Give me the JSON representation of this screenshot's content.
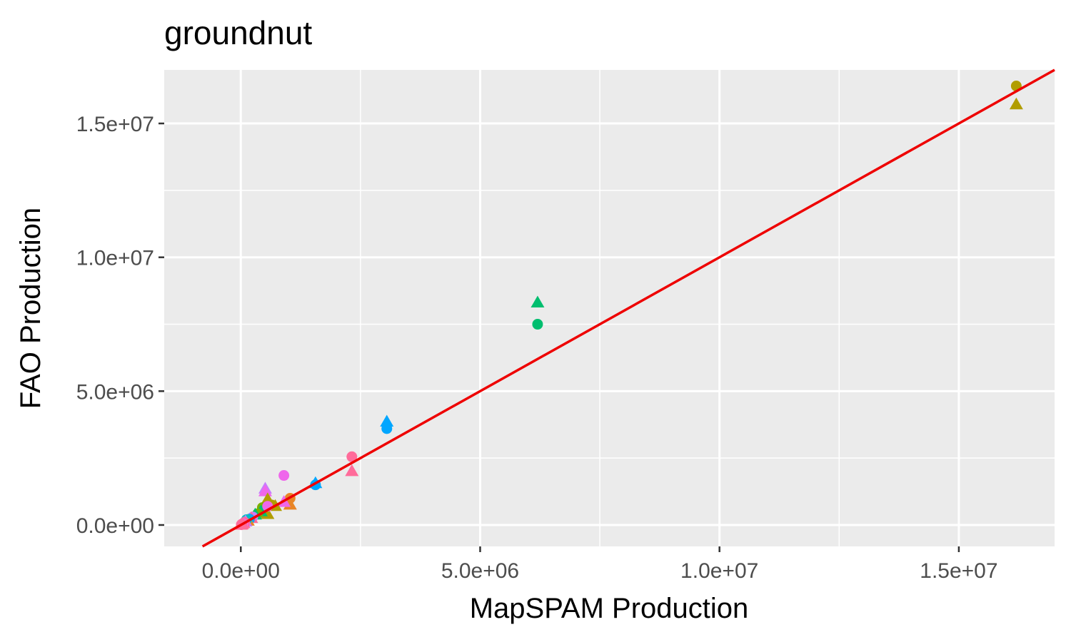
{
  "chart_data": {
    "type": "scatter",
    "title": "groundnut",
    "xlabel": "MapSPAM Production",
    "ylabel": "FAO Production",
    "xlim": [
      -1600000,
      17000000
    ],
    "ylim": [
      -800000,
      17000000
    ],
    "x_ticks": [
      0,
      5000000,
      10000000,
      15000000
    ],
    "x_tick_labels": [
      "0.0e+00",
      "5.0e+06",
      "1.0e+07",
      "1.5e+07"
    ],
    "y_ticks": [
      0,
      5000000,
      10000000,
      15000000
    ],
    "y_tick_labels": [
      "0.0e+00",
      "5.0e+06",
      "1.0e+07",
      "1.5e+07"
    ],
    "grid": true,
    "legend": "none",
    "reference_line": {
      "slope": 1,
      "intercept": 0,
      "color": "#ee0000"
    },
    "colors": {
      "panel_background": "#ebebeb",
      "gridline": "#ffffff",
      "reference_line": "#ee0000"
    },
    "points": [
      {
        "x": 16200000,
        "y": 16400000,
        "shape": "circle",
        "color": "#b19d00"
      },
      {
        "x": 16200000,
        "y": 15700000,
        "shape": "triangle",
        "color": "#b19d00"
      },
      {
        "x": 6200000,
        "y": 8300000,
        "shape": "triangle",
        "color": "#00be6f"
      },
      {
        "x": 6200000,
        "y": 7500000,
        "shape": "circle",
        "color": "#00be6f"
      },
      {
        "x": 3050000,
        "y": 3850000,
        "shape": "triangle",
        "color": "#00a6ff"
      },
      {
        "x": 3050000,
        "y": 3600000,
        "shape": "circle",
        "color": "#00a6ff"
      },
      {
        "x": 2320000,
        "y": 2550000,
        "shape": "circle",
        "color": "#ff6b9a"
      },
      {
        "x": 2320000,
        "y": 2000000,
        "shape": "triangle",
        "color": "#ff6b9a"
      },
      {
        "x": 1560000,
        "y": 1550000,
        "shape": "triangle",
        "color": "#00a6ff"
      },
      {
        "x": 1560000,
        "y": 1500000,
        "shape": "circle",
        "color": "#00a6ff"
      },
      {
        "x": 900000,
        "y": 1850000,
        "shape": "circle",
        "color": "#ef67eb"
      },
      {
        "x": 510000,
        "y": 1350000,
        "shape": "triangle",
        "color": "#c77cff"
      },
      {
        "x": 510000,
        "y": 1250000,
        "shape": "triangle",
        "color": "#ef67eb"
      },
      {
        "x": 1030000,
        "y": 1000000,
        "shape": "circle",
        "color": "#e88526"
      },
      {
        "x": 1030000,
        "y": 750000,
        "shape": "triangle",
        "color": "#e88526"
      },
      {
        "x": 900000,
        "y": 850000,
        "shape": "triangle",
        "color": "#ef67eb"
      },
      {
        "x": 560000,
        "y": 950000,
        "shape": "triangle",
        "color": "#b19d00"
      },
      {
        "x": 720000,
        "y": 700000,
        "shape": "triangle",
        "color": "#b19d00"
      },
      {
        "x": 640000,
        "y": 750000,
        "shape": "circle",
        "color": "#b19d00"
      },
      {
        "x": 480000,
        "y": 600000,
        "shape": "circle",
        "color": "#00bfc4"
      },
      {
        "x": 500000,
        "y": 450000,
        "shape": "triangle",
        "color": "#00bfc4"
      },
      {
        "x": 560000,
        "y": 400000,
        "shape": "triangle",
        "color": "#b19d00"
      },
      {
        "x": 450000,
        "y": 650000,
        "shape": "circle",
        "color": "#7cae00"
      },
      {
        "x": 420000,
        "y": 500000,
        "shape": "triangle",
        "color": "#00be6f"
      },
      {
        "x": 350000,
        "y": 420000,
        "shape": "circle",
        "color": "#7cae00"
      },
      {
        "x": 300000,
        "y": 380000,
        "shape": "triangle",
        "color": "#00be6f"
      },
      {
        "x": 560000,
        "y": 700000,
        "shape": "circle",
        "color": "#ef67eb"
      },
      {
        "x": 250000,
        "y": 300000,
        "shape": "circle",
        "color": "#c77cff"
      },
      {
        "x": 220000,
        "y": 250000,
        "shape": "triangle",
        "color": "#ff6b9a"
      },
      {
        "x": 180000,
        "y": 220000,
        "shape": "circle",
        "color": "#00a6ff"
      },
      {
        "x": 150000,
        "y": 150000,
        "shape": "triangle",
        "color": "#e88526"
      },
      {
        "x": 120000,
        "y": 200000,
        "shape": "circle",
        "color": "#00bfc4"
      },
      {
        "x": 100000,
        "y": 120000,
        "shape": "triangle",
        "color": "#c77cff"
      },
      {
        "x": 80000,
        "y": 100000,
        "shape": "circle",
        "color": "#ff6b9a"
      },
      {
        "x": 60000,
        "y": 60000,
        "shape": "triangle",
        "color": "#ff6b9a"
      },
      {
        "x": 40000,
        "y": 50000,
        "shape": "circle",
        "color": "#ef67eb"
      },
      {
        "x": 30000,
        "y": 20000,
        "shape": "triangle",
        "color": "#ff6b9a"
      },
      {
        "x": 20000,
        "y": 30000,
        "shape": "circle",
        "color": "#ff6b9a"
      },
      {
        "x": 10000,
        "y": 10000,
        "shape": "circle",
        "color": "#ff6b9a"
      },
      {
        "x": 5000,
        "y": 0,
        "shape": "triangle",
        "color": "#ff6b9a"
      }
    ]
  }
}
